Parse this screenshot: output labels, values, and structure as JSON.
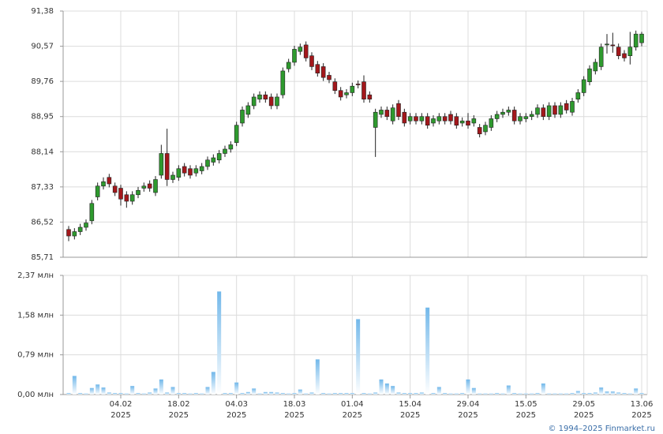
{
  "chart_data": [
    {
      "type": "candlestick",
      "open": [
        86.35,
        86.2,
        86.3,
        86.4,
        86.55,
        87.1,
        87.35,
        87.55,
        87.35,
        87.3,
        87.15,
        87.0,
        87.15,
        87.3,
        87.4,
        87.2,
        87.6,
        88.1,
        87.5,
        87.55,
        87.8,
        87.75,
        87.65,
        87.7,
        87.8,
        87.9,
        87.95,
        88.1,
        88.2,
        88.35,
        88.8,
        89.0,
        89.2,
        89.35,
        89.45,
        89.4,
        89.2,
        89.45,
        90.05,
        90.2,
        90.45,
        90.6,
        90.35,
        90.15,
        90.1,
        89.9,
        89.75,
        89.55,
        89.45,
        89.5,
        89.7,
        89.75,
        89.45,
        88.7,
        89.0,
        89.1,
        88.85,
        89.25,
        89.05,
        88.85,
        88.95,
        88.85,
        88.95,
        88.8,
        88.85,
        88.95,
        89.0,
        88.95,
        88.8,
        88.85,
        88.8,
        88.7,
        88.6,
        88.7,
        88.9,
        89.0,
        89.05,
        89.1,
        88.85,
        88.9,
        88.95,
        89.0,
        89.15,
        88.95,
        89.2,
        89.0,
        89.25,
        89.05,
        89.35,
        89.5,
        89.75,
        90.0,
        90.1,
        90.6,
        90.6,
        90.55,
        90.4,
        90.35,
        90.55,
        90.65
      ],
      "high": [
        86.43,
        86.38,
        86.48,
        86.58,
        87.03,
        87.43,
        87.55,
        87.63,
        87.43,
        87.38,
        87.23,
        87.23,
        87.33,
        87.43,
        87.48,
        87.58,
        88.3,
        88.67,
        87.68,
        87.83,
        87.88,
        87.83,
        87.83,
        87.88,
        88.03,
        88.08,
        88.18,
        88.28,
        88.38,
        88.83,
        89.18,
        89.28,
        89.48,
        89.53,
        89.53,
        89.48,
        89.48,
        90.08,
        90.28,
        90.58,
        90.63,
        90.68,
        90.43,
        90.23,
        90.18,
        89.98,
        89.83,
        89.63,
        89.58,
        89.73,
        89.78,
        89.9,
        89.53,
        89.13,
        89.18,
        89.18,
        89.23,
        89.33,
        89.13,
        89.03,
        89.03,
        89.03,
        89.03,
        88.98,
        89.03,
        89.03,
        89.08,
        89.03,
        88.93,
        89.03,
        88.98,
        88.78,
        88.83,
        88.98,
        89.08,
        89.13,
        89.18,
        89.18,
        89.03,
        89.03,
        89.08,
        89.23,
        89.23,
        89.28,
        89.28,
        89.28,
        89.33,
        89.38,
        89.58,
        89.88,
        90.13,
        90.28,
        90.63,
        90.85,
        90.88,
        90.63,
        90.48,
        90.9,
        90.93,
        90.9
      ],
      "low": [
        86.08,
        86.12,
        86.22,
        86.32,
        86.47,
        87.02,
        87.27,
        87.32,
        87.12,
        86.9,
        86.85,
        86.92,
        87.07,
        87.22,
        87.22,
        87.12,
        87.52,
        87.35,
        87.42,
        87.47,
        87.57,
        87.52,
        87.57,
        87.62,
        87.72,
        87.82,
        87.87,
        88.02,
        88.12,
        88.27,
        88.72,
        88.92,
        89.12,
        89.27,
        89.27,
        89.12,
        89.12,
        89.37,
        89.97,
        90.12,
        90.37,
        90.22,
        90.02,
        89.87,
        89.77,
        89.72,
        89.47,
        89.32,
        89.37,
        89.42,
        89.6,
        89.27,
        89.27,
        88.02,
        88.92,
        88.87,
        88.77,
        88.87,
        88.72,
        88.77,
        88.77,
        88.77,
        88.67,
        88.72,
        88.77,
        88.77,
        88.77,
        88.67,
        88.72,
        88.67,
        88.72,
        88.47,
        88.52,
        88.62,
        88.82,
        88.92,
        88.97,
        88.77,
        88.77,
        88.82,
        88.87,
        88.92,
        88.87,
        88.87,
        88.92,
        88.92,
        89.02,
        88.97,
        89.27,
        89.42,
        89.67,
        89.92,
        90.02,
        90.4,
        90.42,
        90.27,
        90.22,
        90.15,
        90.47,
        90.57
      ],
      "close": [
        86.2,
        86.3,
        86.4,
        86.5,
        86.95,
        87.35,
        87.45,
        87.4,
        87.2,
        87.05,
        87.0,
        87.15,
        87.25,
        87.35,
        87.3,
        87.5,
        88.1,
        87.5,
        87.6,
        87.75,
        87.65,
        87.6,
        87.75,
        87.8,
        87.95,
        88.0,
        88.1,
        88.2,
        88.3,
        88.75,
        89.1,
        89.2,
        89.4,
        89.45,
        89.35,
        89.2,
        89.4,
        90.0,
        90.2,
        90.5,
        90.55,
        90.3,
        90.1,
        89.95,
        89.85,
        89.8,
        89.55,
        89.4,
        89.5,
        89.65,
        89.68,
        89.35,
        89.35,
        89.05,
        89.1,
        88.95,
        89.15,
        88.95,
        88.8,
        88.95,
        88.85,
        88.95,
        88.75,
        88.9,
        88.95,
        88.85,
        88.85,
        88.75,
        88.85,
        88.75,
        88.9,
        88.55,
        88.75,
        88.9,
        89.0,
        89.05,
        89.1,
        88.85,
        88.95,
        88.95,
        89.0,
        89.15,
        88.95,
        89.2,
        89.0,
        89.2,
        89.1,
        89.3,
        89.5,
        89.8,
        90.05,
        90.2,
        90.55,
        90.62,
        90.58,
        90.35,
        90.3,
        90.55,
        90.85,
        90.85
      ],
      "up_color": "#2e9a2e",
      "down_color": "#a3171b",
      "ylim": [
        85.71,
        91.38
      ],
      "yticks": [
        {
          "value": 85.71,
          "label": "85,71"
        },
        {
          "value": 86.52,
          "label": "86,52"
        },
        {
          "value": 87.33,
          "label": "87,33"
        },
        {
          "value": 88.14,
          "label": "88,14"
        },
        {
          "value": 88.95,
          "label": "88,95"
        },
        {
          "value": 89.76,
          "label": "89,76"
        },
        {
          "value": 90.57,
          "label": "90,57"
        },
        {
          "value": 91.38,
          "label": "91,38"
        }
      ],
      "grid": true
    },
    {
      "type": "bar",
      "categories": [
        null,
        null,
        null,
        null,
        null,
        null,
        null,
        null,
        null,
        "04.02 2025",
        null,
        null,
        null,
        null,
        null,
        null,
        null,
        null,
        null,
        "18.02 2025",
        null,
        null,
        null,
        null,
        null,
        null,
        null,
        null,
        null,
        "04.03 2025",
        null,
        null,
        null,
        null,
        null,
        null,
        null,
        null,
        null,
        "18.03 2025",
        null,
        null,
        null,
        null,
        null,
        null,
        null,
        null,
        null,
        "01.04 2025",
        null,
        null,
        null,
        null,
        null,
        null,
        null,
        null,
        null,
        "15.04 2025",
        null,
        null,
        null,
        null,
        null,
        null,
        null,
        null,
        null,
        "29.04 2025",
        null,
        null,
        null,
        null,
        null,
        null,
        null,
        null,
        null,
        "15.05 2025",
        null,
        null,
        null,
        null,
        null,
        null,
        null,
        null,
        null,
        "29.05 2025",
        null,
        null,
        null,
        null,
        null,
        null,
        null,
        null,
        null,
        "13.06 2025"
      ],
      "values": [
        0.03,
        0.37,
        0.03,
        0.02,
        0.13,
        0.2,
        0.14,
        0.04,
        0.03,
        0.03,
        0.02,
        0.17,
        0.03,
        0.02,
        0.04,
        0.12,
        0.3,
        0.04,
        0.15,
        0.03,
        0.03,
        0.02,
        0.03,
        0.02,
        0.15,
        0.45,
        2.05,
        0.03,
        0.03,
        0.24,
        0.03,
        0.05,
        0.12,
        0.02,
        0.05,
        0.05,
        0.04,
        0.03,
        0.02,
        0.03,
        0.1,
        0.02,
        0.04,
        0.7,
        0.03,
        0.02,
        0.03,
        0.03,
        0.03,
        0.03,
        1.5,
        0.03,
        0.02,
        0.04,
        0.3,
        0.22,
        0.17,
        0.04,
        0.03,
        0.03,
        0.03,
        0.04,
        1.73,
        0.03,
        0.15,
        0.03,
        0.02,
        0.02,
        0.03,
        0.3,
        0.13,
        0.02,
        0.02,
        0.02,
        0.03,
        0.02,
        0.18,
        0.03,
        0.02,
        0.02,
        0.02,
        0.03,
        0.22,
        0.02,
        0.02,
        0.02,
        0.02,
        0.03,
        0.07,
        0.03,
        0.03,
        0.04,
        0.14,
        0.06,
        0.06,
        0.04,
        0.03,
        0.02,
        0.12,
        0.03
      ],
      "color": "#72b8ea",
      "ylim": [
        0,
        2.37
      ],
      "yticks": [
        {
          "value": 0,
          "label": "0,00 млн"
        },
        {
          "value": 0.79,
          "label": "0,79 млн"
        },
        {
          "value": 1.58,
          "label": "1,58 млн"
        },
        {
          "value": 2.37,
          "label": "2,37 млн"
        }
      ],
      "grid": true
    }
  ],
  "footer": "© 1994–2025 Finmarket.ru"
}
